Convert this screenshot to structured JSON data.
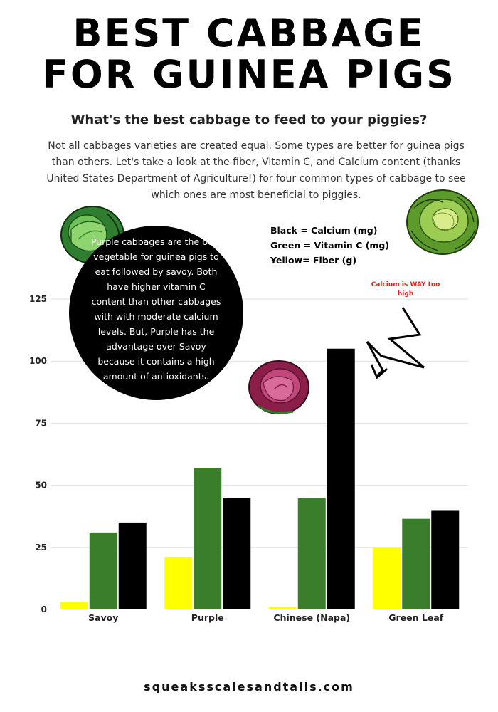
{
  "header": {
    "title_line1": "BEST CABBAGE",
    "title_line2": "FOR GUINEA PIGS",
    "subtitle": "What's the best cabbage to feed to your piggies?",
    "intro": "Not all cabbages varieties are created equal. Some types are better for guinea pigs than others. Let's take a look at the fiber, Vitamin C, and Calcium content (thanks United States Department of Agriculture!) for four common types of cabbage to see which ones are most beneficial to piggies."
  },
  "legend": {
    "black": "Black = Calcium (mg)",
    "green": "Green = Vitamin C (mg)",
    "yellow": "Yellow= Fiber (g)"
  },
  "callout": {
    "text": "Purple cabbages are the best vegetable for guinea pigs to eat followed by savoy. Both have higher vitamin C content than other cabbages with with moderate calcium levels. But, Purple has the advantage over Savoy because it contains a high amount of antioxidants."
  },
  "annotation": {
    "text": "Calcium is WAY too high"
  },
  "icons": [
    "green-cabbage-icon",
    "savoy-cabbage-icon",
    "purple-cabbage-icon"
  ],
  "chart_data": {
    "type": "bar",
    "categories": [
      "Savoy",
      "Purple",
      "Chinese (Napa)",
      "Green Leaf"
    ],
    "series": [
      {
        "color": "#ffff00",
        "values": [
          3,
          21,
          1,
          25
        ]
      },
      {
        "color": "#3a7d2b",
        "values": [
          31,
          57,
          45,
          36.5
        ]
      },
      {
        "color": "#000000",
        "values": [
          35,
          45,
          105,
          40
        ]
      }
    ],
    "ylim": [
      0,
      125
    ],
    "yticks": [
      "0",
      "25",
      "50",
      "75",
      "100",
      "125"
    ],
    "ytick_values": [
      0,
      25,
      50,
      75,
      100,
      125
    ],
    "grid": true
  },
  "footer": {
    "site": "squeaksscalesandtails.com"
  }
}
